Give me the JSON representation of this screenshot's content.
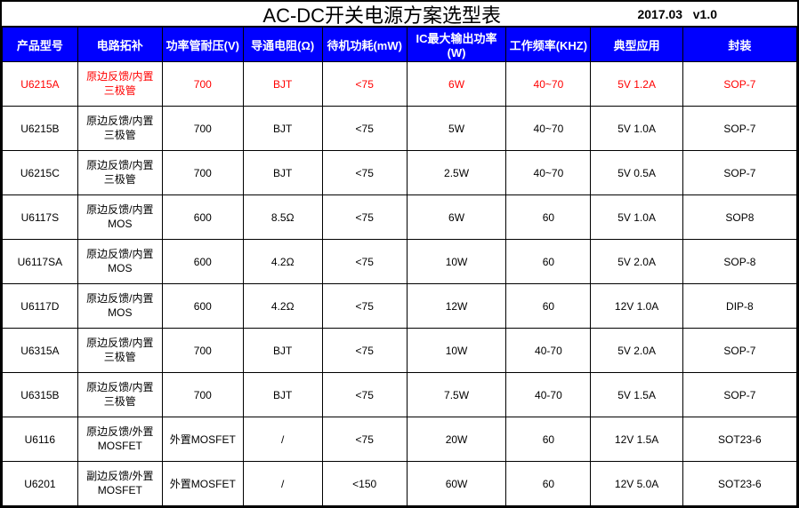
{
  "title": "AC-DC开关电源方案选型表",
  "date": "2017.03",
  "version": "v1.0",
  "columns": [
    "产品型号",
    "电路拓补",
    "功率管耐压(V)",
    "导通电阻(Ω)",
    "待机功耗(mW)",
    "IC最大输出功率(W)",
    "工作频率(KHZ)",
    "典型应用",
    "封装"
  ],
  "colors": {
    "header_bg": "#0000ff",
    "header_text": "#ffffff",
    "highlight_text": "#ff0000",
    "border": "#000000",
    "background": "#ffffff"
  },
  "rows": [
    {
      "highlight": true,
      "model": "U6215A",
      "topology": "原边反馈/内置三极管",
      "voltage": "700",
      "ron": "BJT",
      "standby": "<75",
      "power": "6W",
      "freq": "40~70",
      "app": "5V 1.2A",
      "pkg": "SOP-7"
    },
    {
      "highlight": false,
      "model": "U6215B",
      "topology": "原边反馈/内置三极管",
      "voltage": "700",
      "ron": "BJT",
      "standby": "<75",
      "power": "5W",
      "freq": "40~70",
      "app": "5V 1.0A",
      "pkg": "SOP-7"
    },
    {
      "highlight": false,
      "model": "U6215C",
      "topology": "原边反馈/内置三极管",
      "voltage": "700",
      "ron": "BJT",
      "standby": "<75",
      "power": "2.5W",
      "freq": "40~70",
      "app": "5V 0.5A",
      "pkg": "SOP-7"
    },
    {
      "highlight": false,
      "model": "U6117S",
      "topology": "原边反馈/内置MOS",
      "voltage": "600",
      "ron": "8.5Ω",
      "standby": "<75",
      "power": "6W",
      "freq": "60",
      "app": "5V 1.0A",
      "pkg": "SOP8"
    },
    {
      "highlight": false,
      "model": "U6117SA",
      "topology": "原边反馈/内置MOS",
      "voltage": "600",
      "ron": "4.2Ω",
      "standby": "<75",
      "power": "10W",
      "freq": "60",
      "app": "5V 2.0A",
      "pkg": "SOP-8"
    },
    {
      "highlight": false,
      "model": "U6117D",
      "topology": "原边反馈/内置MOS",
      "voltage": "600",
      "ron": "4.2Ω",
      "standby": "<75",
      "power": "12W",
      "freq": "60",
      "app": "12V 1.0A",
      "pkg": "DIP-8"
    },
    {
      "highlight": false,
      "model": "U6315A",
      "topology": "原边反馈/内置三极管",
      "voltage": "700",
      "ron": "BJT",
      "standby": "<75",
      "power": "10W",
      "freq": "40-70",
      "app": "5V 2.0A",
      "pkg": "SOP-7"
    },
    {
      "highlight": false,
      "model": "U6315B",
      "topology": "原边反馈/内置三极管",
      "voltage": "700",
      "ron": "BJT",
      "standby": "<75",
      "power": "7.5W",
      "freq": "40-70",
      "app": "5V 1.5A",
      "pkg": "SOP-7"
    },
    {
      "highlight": false,
      "model": "U6116",
      "topology": "原边反馈/外置MOSFET",
      "voltage": "外置MOSFET",
      "ron": "/",
      "standby": "<75",
      "power": "20W",
      "freq": "60",
      "app": "12V 1.5A",
      "pkg": "SOT23-6"
    },
    {
      "highlight": false,
      "model": "U6201",
      "topology": "副边反馈/外置MOSFET",
      "voltage": "外置MOSFET",
      "ron": "/",
      "standby": "<150",
      "power": "60W",
      "freq": "60",
      "app": "12V 5.0A",
      "pkg": "SOT23-6"
    }
  ]
}
